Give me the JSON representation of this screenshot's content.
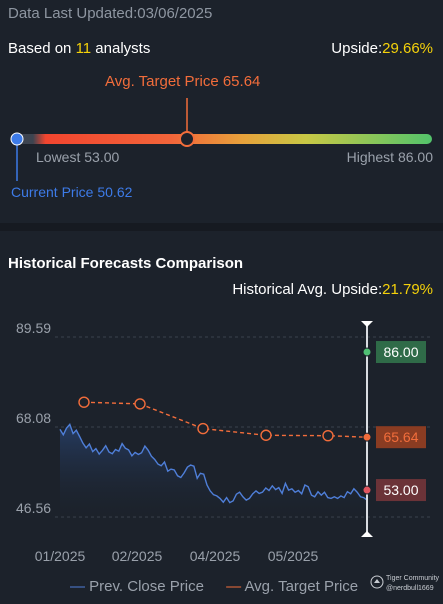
{
  "header": {
    "last_updated_label": "Data Last Updated:03/06/2025",
    "based_on_prefix": "Based on ",
    "analyst_count": "11",
    "based_on_suffix": " analysts",
    "upside_label": "Upside:",
    "upside_value": "29.66%"
  },
  "price_range": {
    "avg_target_label": "Avg. Target Price 65.64",
    "lowest_label": "Lowest 53.00",
    "highest_label": "Highest 86.00",
    "current_label": "Current Price 50.62",
    "lowest": 53.0,
    "highest": 86.0,
    "avg_target": 65.64,
    "current": 50.62
  },
  "historical": {
    "title": "Historical Forecasts Comparison",
    "avg_upside_label": "Historical Avg. Upside:",
    "avg_upside_value": "21.79%"
  },
  "legend": {
    "prev_close": "Prev. Close Price",
    "avg_target": "Avg. Target Price"
  },
  "watermark": {
    "line1": "Tiger Community",
    "line2": "@nerdbull1669"
  },
  "colors": {
    "price_line": "#4f7fd9",
    "target_line": "#f26d3b",
    "high_badge": "#2f6b48",
    "avg_badge": "#8a3c22",
    "low_badge": "#6b3338"
  },
  "chart_data": {
    "type": "line",
    "y_ticks": [
      "89.59",
      "68.08",
      "46.56"
    ],
    "y_tick_values": [
      89.59,
      68.08,
      46.56
    ],
    "x_ticks": [
      "01/2025",
      "02/2025",
      "04/2025",
      "05/2025"
    ],
    "ylim": [
      46.56,
      89.59
    ],
    "series": [
      {
        "name": "Prev. Close Price",
        "values": [
          67.5,
          66.2,
          67.8,
          68.7,
          66.5,
          67.3,
          65.8,
          64.2,
          63.1,
          64.0,
          62.2,
          62.9,
          61.6,
          62.5,
          63.6,
          62.1,
          61.7,
          62.7,
          62.3,
          64.1,
          63.0,
          62.6,
          61.2,
          62.0,
          61.5,
          61.9,
          63.5,
          62.5,
          61.1,
          60.3,
          59.2,
          58.8,
          59.7,
          57.5,
          58.0,
          57.8,
          56.4,
          56.0,
          57.1,
          58.5,
          59.0,
          58.7,
          55.8,
          57.0,
          56.8,
          54.2,
          52.8,
          51.9,
          51.6,
          51.0,
          50.1,
          51.2,
          50.0,
          50.4,
          52.0,
          52.5,
          51.4,
          50.6,
          51.0,
          52.1,
          52.8,
          52.2,
          52.5,
          53.5,
          52.9,
          54.0,
          53.1,
          53.6,
          52.2,
          54.6,
          53.0,
          53.3,
          52.5,
          52.9,
          52.1,
          54.2,
          53.8,
          51.8,
          51.4,
          52.6,
          51.8,
          52.5,
          51.2,
          51.0,
          51.4,
          51.0,
          51.6,
          51.2,
          52.6,
          52.1,
          53.3,
          52.5,
          51.4,
          51.2,
          50.62
        ]
      },
      {
        "name": "Avg. Target Price",
        "points": [
          {
            "i": 0,
            "v": 74.0
          },
          {
            "i": 1,
            "v": 73.6
          },
          {
            "i": 2,
            "v": 67.7
          },
          {
            "i": 3,
            "v": 66.1
          },
          {
            "i": 4,
            "v": 66.0
          },
          {
            "i": 5,
            "v": 65.64
          }
        ]
      }
    ],
    "badges": [
      {
        "label": "86.00",
        "value": 86.0
      },
      {
        "label": "65.64",
        "value": 65.64
      },
      {
        "label": "53.00",
        "value": 53.0
      }
    ]
  }
}
